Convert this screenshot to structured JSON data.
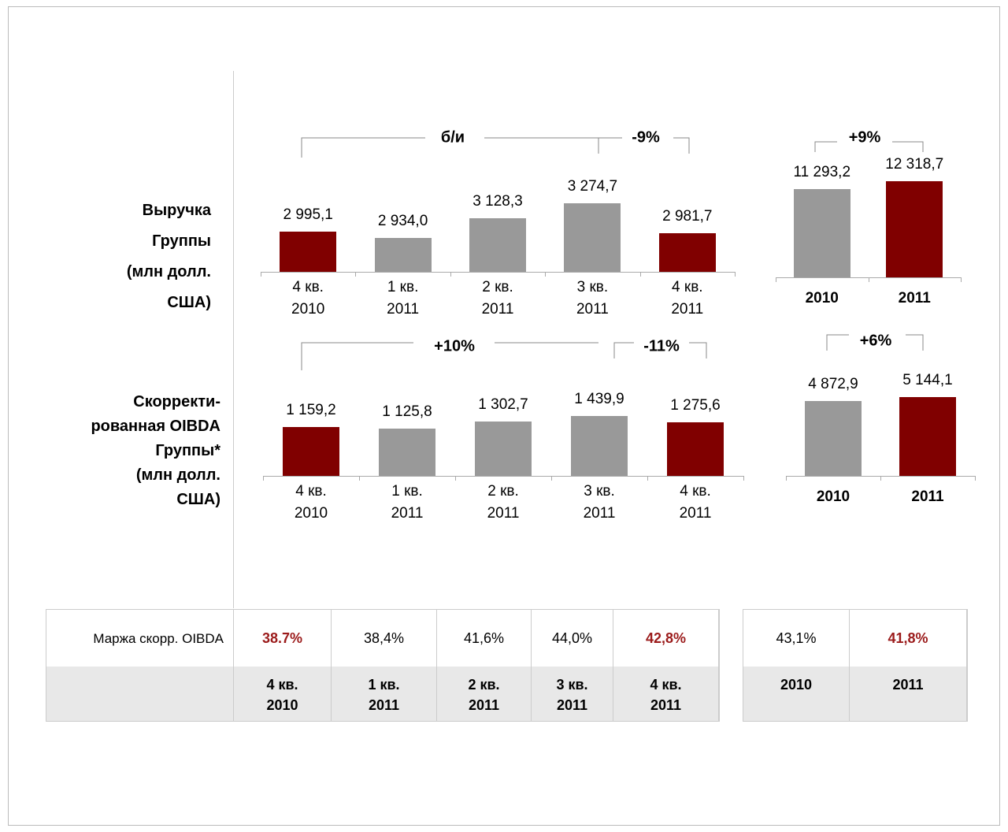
{
  "chart_data": [
    {
      "type": "bar",
      "categories": [
        "4 кв. 2010",
        "1 кв. 2011",
        "2 кв. 2011",
        "3 кв. 2011",
        "4 кв. 2011"
      ],
      "values": [
        2995.1,
        2934.0,
        3128.3,
        3274.7,
        2981.7
      ],
      "value_labels": [
        "2 995,1",
        "2 934,0",
        "3 128,3",
        "3 274,7",
        "2 981,7"
      ],
      "colors": [
        "#800000",
        "#999999",
        "#999999",
        "#999999",
        "#800000"
      ],
      "ylim": [
        2600,
        3400
      ],
      "annotations": [
        "б/и",
        "-9%"
      ]
    },
    {
      "type": "bar",
      "categories": [
        "2010",
        "2011"
      ],
      "values": [
        11293.2,
        12318.7
      ],
      "value_labels": [
        "11 293,2",
        "12 318,7"
      ],
      "colors": [
        "#999999",
        "#800000"
      ],
      "ylim": [
        0,
        13000
      ],
      "annotations": [
        "+9%"
      ]
    },
    {
      "type": "bar",
      "categories": [
        "4 кв. 2010",
        "1 кв. 2011",
        "2 кв. 2011",
        "3 кв. 2011",
        "4 кв. 2011"
      ],
      "values": [
        1159.2,
        1125.8,
        1302.7,
        1439.9,
        1275.6
      ],
      "value_labels": [
        "1 159,2",
        "1 125,8",
        "1 302,7",
        "1 439,9",
        "1 275,6"
      ],
      "colors": [
        "#800000",
        "#999999",
        "#999999",
        "#999999",
        "#800000"
      ],
      "ylim": [
        0,
        1600
      ],
      "annotations": [
        "+10%",
        "-11%"
      ]
    },
    {
      "type": "bar",
      "categories": [
        "2010",
        "2011"
      ],
      "values": [
        4872.9,
        5144.1
      ],
      "value_labels": [
        "4 872,9",
        "5 144,1"
      ],
      "colors": [
        "#999999",
        "#800000"
      ],
      "ylim": [
        0,
        6000
      ],
      "annotations": [
        "+6%"
      ]
    }
  ],
  "row_labels": [
    [
      "Выручка",
      "Группы",
      "(млн долл.",
      "США)"
    ],
    [
      "Скорректи-",
      "рованная OIBDA",
      "Группы*",
      "(млн долл.",
      "США)"
    ]
  ],
  "table": {
    "label": "Маржа скорр. OIBDA",
    "quarters": {
      "values": [
        "38.7%",
        "38,4%",
        "41,6%",
        "44,0%",
        "42,8%"
      ],
      "headers": [
        "4 кв. 2010",
        "1 кв. 2011",
        "2 кв. 2011",
        "3 кв. 2011",
        "4 кв. 2011"
      ]
    },
    "years": {
      "values": [
        "43,1%",
        "41,8%"
      ],
      "headers": [
        "2010",
        "2011"
      ]
    }
  }
}
